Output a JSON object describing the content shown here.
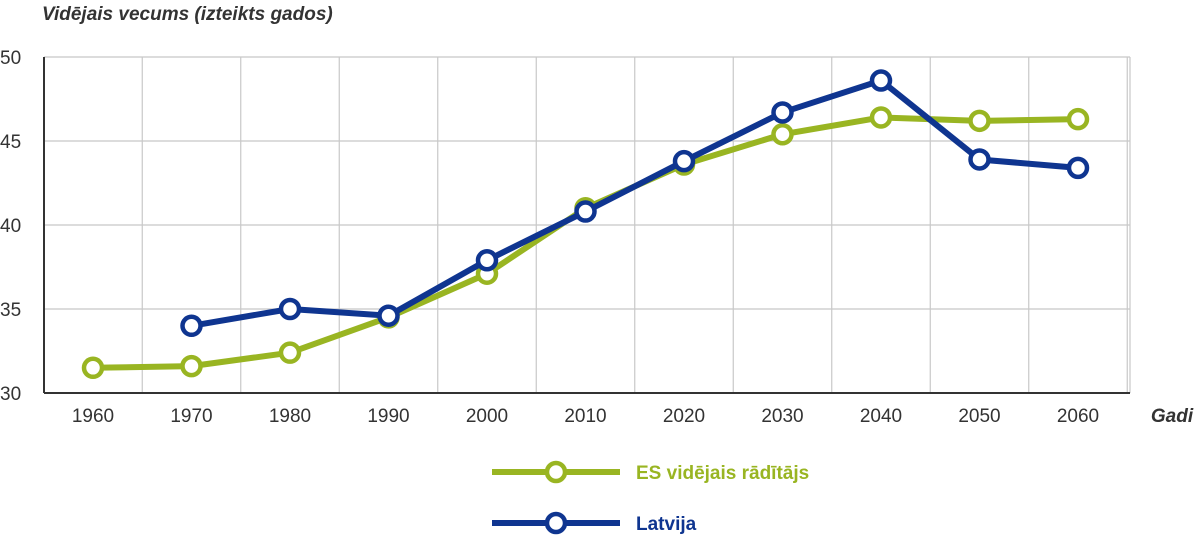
{
  "chart_data": {
    "type": "line",
    "ylabel": "Vidējais vecums (izteikts gados)",
    "xlabel": "Gadi",
    "x": [
      1960,
      1970,
      1980,
      1990,
      2000,
      2010,
      2020,
      2030,
      2040,
      2050,
      2060
    ],
    "x_tick_labels": [
      "1960",
      "1970",
      "1980",
      "1990",
      "2000",
      "2010",
      "2020",
      "2030",
      "2040",
      "2050",
      "2060"
    ],
    "y_tick_labels": [
      "30",
      "35",
      "40",
      "45",
      "50"
    ],
    "y_ticks": [
      30,
      35,
      40,
      45,
      50
    ],
    "ylim": [
      30,
      50
    ],
    "grid": true,
    "legend_position": "bottom-center",
    "series": [
      {
        "name": "ES vidējais rādītājs",
        "color": "#99b522",
        "values": [
          31.5,
          31.6,
          32.4,
          34.5,
          37.1,
          41.0,
          43.6,
          45.4,
          46.4,
          46.2,
          46.3
        ]
      },
      {
        "name": "Latvija",
        "color": "#0f3590",
        "values": [
          null,
          34.0,
          35.0,
          34.6,
          37.9,
          40.8,
          43.8,
          46.7,
          48.6,
          43.9,
          43.4
        ]
      }
    ]
  }
}
